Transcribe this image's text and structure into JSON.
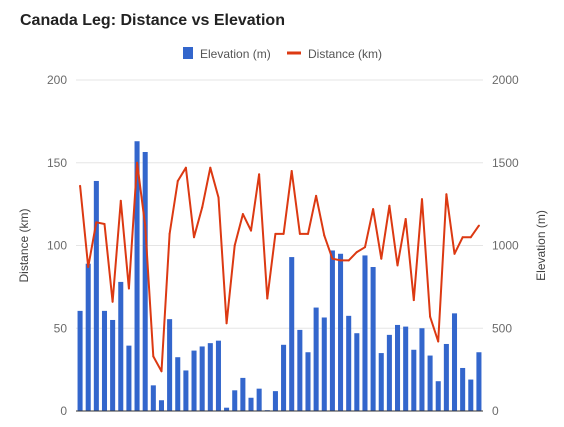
{
  "chart_data": {
    "type": "bar",
    "title": "Canada Leg: Distance vs Elevation",
    "colors": {
      "elevation": "#3366cc",
      "distance": "#dc3912"
    },
    "legend": {
      "position": "top",
      "items": [
        "Elevation (m)",
        "Distance (km)"
      ]
    },
    "left_axis": {
      "label": "Distance (km)",
      "range": [
        0,
        200
      ],
      "ticks": [
        "0",
        "50",
        "100",
        "150",
        "200"
      ],
      "tick_values": [
        0,
        50,
        100,
        150,
        200
      ]
    },
    "right_axis": {
      "label": "Elevation (m)",
      "range": [
        0,
        2000
      ],
      "ticks": [
        "0",
        "500",
        "1000",
        "1500",
        "2000"
      ],
      "tick_values": [
        0,
        500,
        1000,
        1500,
        2000
      ]
    },
    "grid": true,
    "series": [
      {
        "name": "Elevation (m)",
        "type": "bar",
        "axis": "right",
        "values": [
          605,
          890,
          1390,
          605,
          550,
          780,
          395,
          1630,
          1565,
          155,
          65,
          555,
          325,
          245,
          365,
          390,
          410,
          425,
          20,
          125,
          200,
          80,
          135,
          5,
          120,
          400,
          930,
          490,
          355,
          625,
          565,
          970,
          950,
          575,
          470,
          940,
          870,
          350,
          460,
          520,
          510,
          370,
          500,
          335,
          180,
          405,
          590,
          260,
          190,
          355
        ]
      },
      {
        "name": "Distance (km)",
        "type": "line",
        "axis": "left",
        "values": [
          136,
          87,
          114,
          113,
          66,
          127,
          74,
          150,
          112,
          33,
          24,
          107,
          139,
          147,
          105,
          123,
          147,
          129,
          53,
          100,
          119,
          109,
          143,
          68,
          107,
          107,
          145,
          107,
          107,
          130,
          106,
          92,
          91,
          91,
          96,
          99,
          122,
          92,
          124,
          88,
          116,
          67,
          128,
          57,
          42,
          131,
          95,
          105,
          105,
          112
        ]
      }
    ]
  }
}
